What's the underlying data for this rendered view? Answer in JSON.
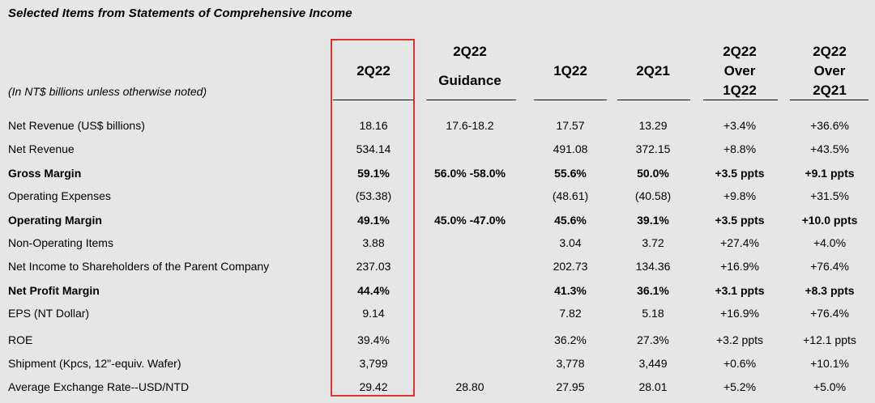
{
  "title": "Selected Items from Statements of Comprehensive Income",
  "note": "(In NT$ billions unless otherwise noted)",
  "columns": [
    {
      "line1": "2Q22",
      "line2": "",
      "line3": ""
    },
    {
      "line1": "2Q22",
      "line2": "Guidance",
      "line3": ""
    },
    {
      "line1": "1Q22",
      "line2": "",
      "line3": ""
    },
    {
      "line1": "2Q21",
      "line2": "",
      "line3": ""
    },
    {
      "line1": "2Q22",
      "line2": "Over",
      "line3": "1Q22"
    },
    {
      "line1": "2Q22",
      "line2": "Over",
      "line3": "2Q21"
    }
  ],
  "rows": [
    {
      "label": "Net Revenue (US$ billions)",
      "bold": false,
      "values": [
        "18.16",
        "17.6-18.2",
        "17.57",
        "13.29",
        "+3.4%",
        "+36.6%"
      ]
    },
    {
      "label": "Net Revenue",
      "bold": false,
      "values": [
        "534.14",
        "",
        "491.08",
        "372.15",
        "+8.8%",
        "+43.5%"
      ]
    },
    {
      "label": "Gross Margin",
      "bold": true,
      "values": [
        "59.1%",
        "56.0% -58.0%",
        "55.6%",
        "50.0%",
        "+3.5 ppts",
        "+9.1 ppts"
      ]
    },
    {
      "label": "Operating Expenses",
      "bold": false,
      "values": [
        "(53.38)",
        "",
        "(48.61)",
        "(40.58)",
        "+9.8%",
        "+31.5%"
      ]
    },
    {
      "label": "Operating Margin",
      "bold": true,
      "values": [
        "49.1%",
        "45.0% -47.0%",
        "45.6%",
        "39.1%",
        "+3.5 ppts",
        "+10.0 ppts"
      ]
    },
    {
      "label": "Non-Operating Items",
      "bold": false,
      "values": [
        "3.88",
        "",
        "3.04",
        "3.72",
        "+27.4%",
        "+4.0%"
      ]
    },
    {
      "label": "Net Income to Shareholders of the Parent Company",
      "bold": false,
      "values": [
        "237.03",
        "",
        "202.73",
        "134.36",
        "+16.9%",
        "+76.4%"
      ]
    },
    {
      "label": "Net Profit Margin",
      "bold": true,
      "values": [
        "44.4%",
        "",
        "41.3%",
        "36.1%",
        "+3.1 ppts",
        "+8.3 ppts"
      ]
    },
    {
      "label": "EPS (NT Dollar)",
      "bold": false,
      "values": [
        "9.14",
        "",
        "7.82",
        "5.18",
        "+16.9%",
        "+76.4%"
      ]
    },
    {
      "label": "ROE",
      "bold": false,
      "values": [
        "39.4%",
        "",
        "36.2%",
        "27.3%",
        "+3.2 ppts",
        "+12.1 ppts"
      ]
    },
    {
      "label": "Shipment (Kpcs, 12\"-equiv. Wafer)",
      "bold": false,
      "values": [
        "3,799",
        "",
        "3,778",
        "3,449",
        "+0.6%",
        "+10.1%"
      ]
    },
    {
      "label": "Average Exchange Rate--USD/NTD",
      "bold": false,
      "values": [
        "29.42",
        "28.80",
        "27.95",
        "28.01",
        "+5.2%",
        "+5.0%"
      ]
    }
  ],
  "colors": {
    "highlight": "#e0322d",
    "background": "#e6e6e6"
  }
}
